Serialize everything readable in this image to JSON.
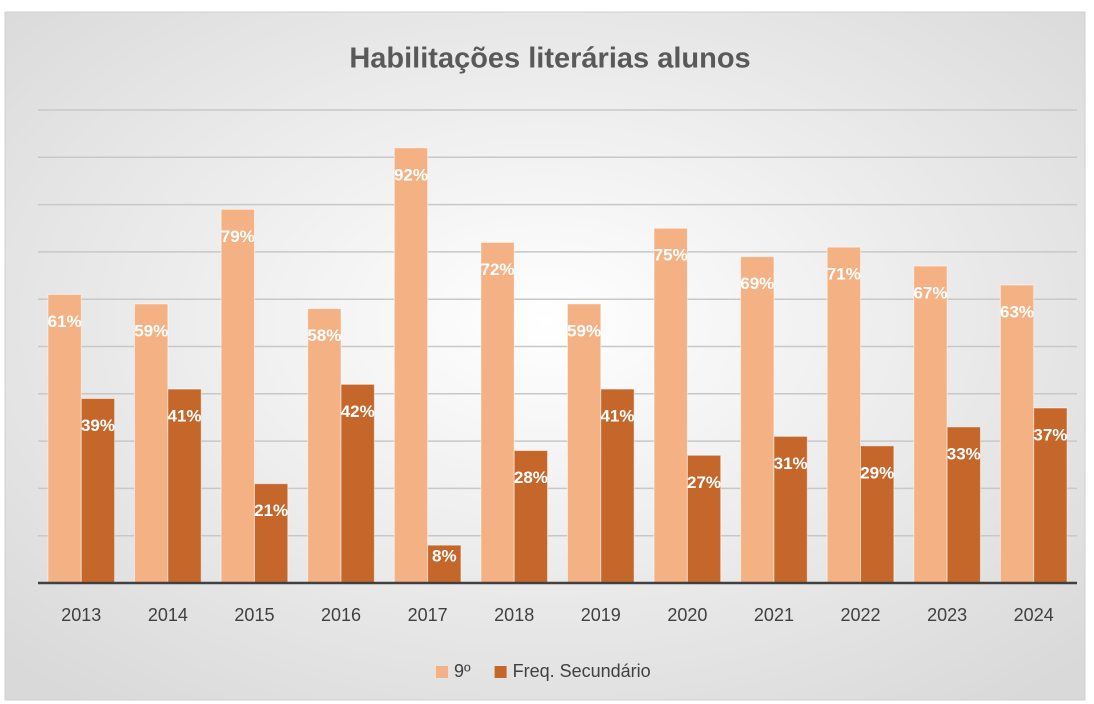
{
  "chart_data": {
    "type": "bar",
    "title": "Habilitações literárias alunos",
    "categories": [
      "2013",
      "2014",
      "2015",
      "2016",
      "2017",
      "2018",
      "2019",
      "2020",
      "2021",
      "2022",
      "2023",
      "2024"
    ],
    "series": [
      {
        "name": "9º",
        "color": "#f4b183",
        "values": [
          61,
          59,
          79,
          58,
          92,
          72,
          59,
          75,
          69,
          71,
          67,
          63
        ],
        "value_labels": [
          "61%",
          "59%",
          "79%",
          "58%",
          "92%",
          "72%",
          "59%",
          "75%",
          "69%",
          "71%",
          "67%",
          "63%"
        ]
      },
      {
        "name": "Freq. Secundário",
        "color": "#c5662a",
        "values": [
          39,
          41,
          21,
          42,
          8,
          28,
          41,
          27,
          31,
          29,
          33,
          37
        ],
        "value_labels": [
          "39%",
          "41%",
          "21%",
          "42%",
          "8%",
          "28%",
          "41%",
          "27%",
          "31%",
          "29%",
          "33%",
          "37%"
        ]
      }
    ],
    "ylim": [
      0,
      100
    ],
    "yticks": [
      0,
      10,
      20,
      30,
      40,
      50,
      60,
      70,
      80,
      90,
      100
    ],
    "grid": true,
    "legend": "bottom"
  }
}
